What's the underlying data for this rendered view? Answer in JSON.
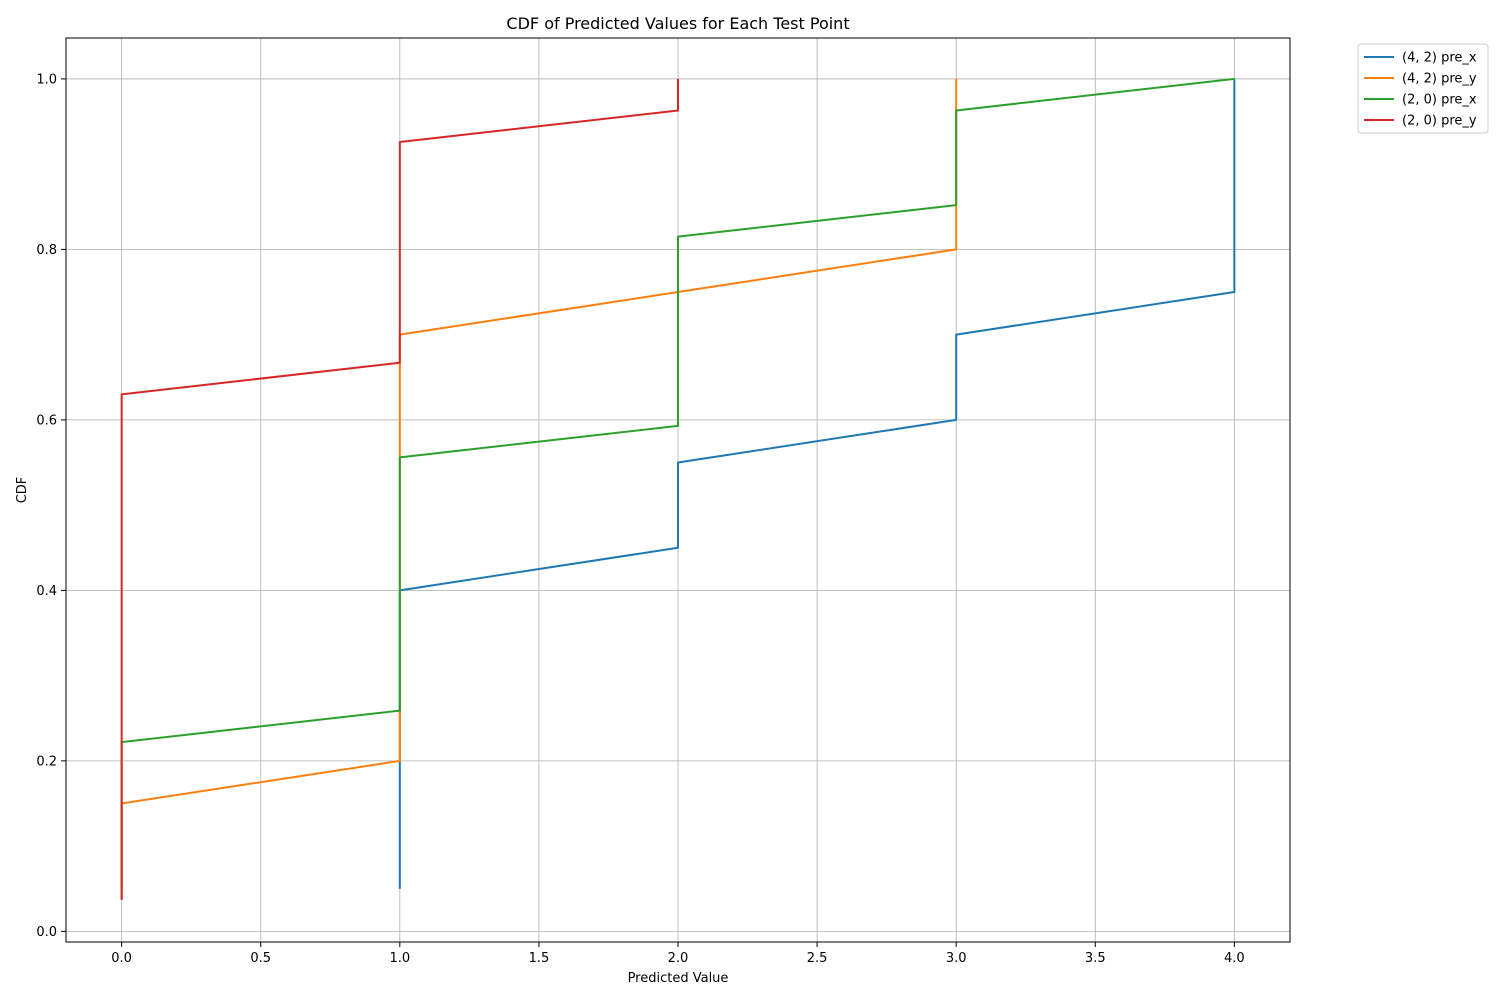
{
  "chart_data": {
    "type": "line",
    "title": "CDF of Predicted Values for Each Test Point",
    "xlabel": "Predicted Value",
    "ylabel": "CDF",
    "xlim": [
      -0.2,
      4.2
    ],
    "ylim": [
      -0.0125,
      1.048
    ],
    "xticks": [
      0.0,
      0.5,
      1.0,
      1.5,
      2.0,
      2.5,
      3.0,
      3.5,
      4.0
    ],
    "xtick_labels": [
      "0.0",
      "0.5",
      "1.0",
      "1.5",
      "2.0",
      "2.5",
      "3.0",
      "3.5",
      "4.0"
    ],
    "yticks": [
      0.0,
      0.2,
      0.4,
      0.6,
      0.8,
      1.0
    ],
    "ytick_labels": [
      "0.0",
      "0.2",
      "0.4",
      "0.6",
      "0.8",
      "1.0"
    ],
    "grid": true,
    "legend_position": "outside top-right",
    "series": [
      {
        "name": "(4, 2) pre_x",
        "color": "#1f77b4",
        "x": [
          1,
          1,
          2,
          2,
          3,
          3,
          4,
          4
        ],
        "y": [
          0.05,
          0.4,
          0.45,
          0.55,
          0.6,
          0.7,
          0.75,
          1.0
        ]
      },
      {
        "name": "(4, 2) pre_y",
        "color": "#ff7f0e",
        "x": [
          0,
          0,
          1,
          1,
          2,
          3,
          3
        ],
        "y": [
          0.05,
          0.15,
          0.2,
          0.7,
          0.75,
          0.8,
          1.0
        ]
      },
      {
        "name": "(2, 0) pre_x",
        "color": "#2ca02c",
        "x": [
          0,
          0,
          1,
          1,
          2,
          2,
          3,
          3,
          4
        ],
        "y": [
          0.037,
          0.222,
          0.259,
          0.556,
          0.593,
          0.815,
          0.852,
          0.963,
          1.0
        ]
      },
      {
        "name": "(2, 0) pre_y",
        "color": "#d62728",
        "x": [
          0,
          0,
          1,
          1,
          2,
          2
        ],
        "y": [
          0.037,
          0.63,
          0.667,
          0.926,
          0.963,
          1.0
        ]
      }
    ]
  }
}
